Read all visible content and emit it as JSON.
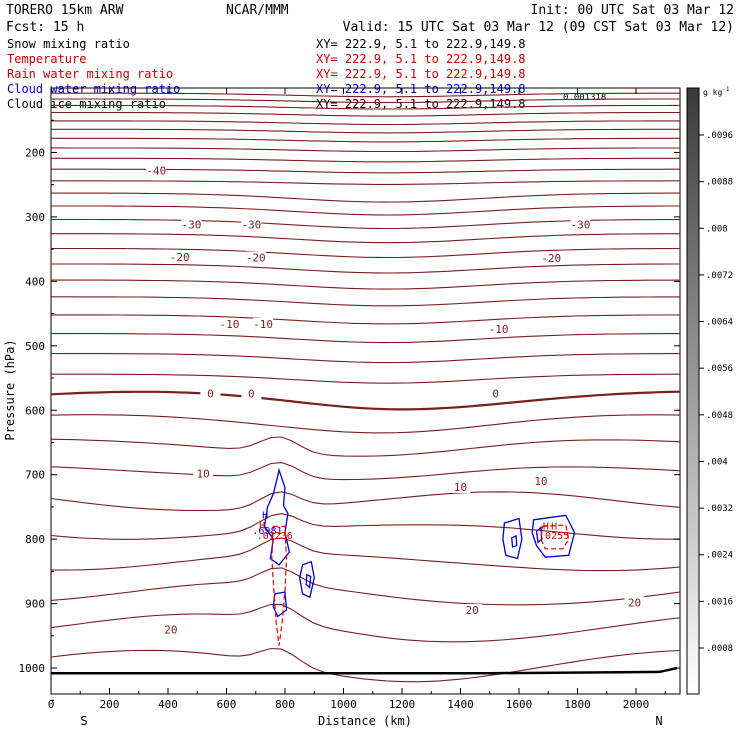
{
  "header": {
    "model": "TORERO   15km ARW",
    "center": "NCAR/MMM",
    "init": "Init: 00 UTC Sat 03 Mar 12",
    "fcst": "Fcst:    15 h",
    "valid": "Valid: 15 UTC Sat 03 Mar 12 (09 CST Sat 03 Mar 12)"
  },
  "fields": [
    {
      "name": "Snow mixing ratio",
      "xy": "XY= 222.9,  5.1 to 222.9,149.8",
      "color": "#000000"
    },
    {
      "name": "Temperature",
      "xy": "XY= 222.9,  5.1 to 222.9,149.8",
      "color": "#cc0000"
    },
    {
      "name": "Rain water mixing ratio",
      "xy": "XY= 222.9,  5.1 to 222.9,149.8",
      "color": "#cc0000"
    },
    {
      "name": "Cloud water mixing ratio",
      "xy": "XY= 222.9,  5.1 to 222.9,149.8",
      "color": "#0000cc"
    },
    {
      "name": "Cloud ice mixing ratio",
      "xy": "XY= 222.9,  5.1 to 222.9,149.8",
      "color": "#000000"
    }
  ],
  "corner_value": "0.001318",
  "colors": {
    "temperature_isotherm": "#7a1f1f",
    "rain_water": "#dd0000",
    "cloud_water": "#0000cc",
    "ground": "#000000"
  },
  "chart_data": {
    "type": "contour",
    "title": "",
    "xlabel": "Distance (km)",
    "ylabel": "Pressure (hPa)",
    "xlim": [
      0,
      2140
    ],
    "ylim": [
      1050,
      100
    ],
    "x_ticks": [
      0,
      200,
      400,
      600,
      800,
      1000,
      1200,
      1400,
      1600,
      1800,
      2000
    ],
    "y_ticks": [
      200,
      300,
      400,
      500,
      600,
      700,
      800,
      900,
      1000
    ],
    "x_end_labels": {
      "left": "S",
      "right": "N"
    },
    "colorbar": {
      "unit": "g kg",
      "unit_exponent": "-1",
      "ticks": [
        ".0096",
        ".0088",
        ".008",
        ".0072",
        ".0064",
        ".0056",
        ".0048",
        ".004",
        ".0032",
        ".0024",
        ".0016",
        ".0008"
      ]
    },
    "isotherm_labels": [
      {
        "value": "-40",
        "x": 360,
        "p": 228
      },
      {
        "value": "-30",
        "x": 480,
        "p": 312
      },
      {
        "value": "-30",
        "x": 685,
        "p": 312
      },
      {
        "value": "-30",
        "x": 1810,
        "p": 312
      },
      {
        "value": "-20",
        "x": 440,
        "p": 362
      },
      {
        "value": "-20",
        "x": 700,
        "p": 363
      },
      {
        "value": "-20",
        "x": 1710,
        "p": 364
      },
      {
        "value": "-10",
        "x": 610,
        "p": 466
      },
      {
        "value": "-10",
        "x": 725,
        "p": 466
      },
      {
        "value": "-10",
        "x": 1530,
        "p": 474
      },
      {
        "value": "0",
        "x": 545,
        "p": 574
      },
      {
        "value": "0",
        "x": 685,
        "p": 574
      },
      {
        "value": "0",
        "x": 1520,
        "p": 574
      },
      {
        "value": "10",
        "x": 520,
        "p": 698
      },
      {
        "value": "10",
        "x": 1400,
        "p": 719
      },
      {
        "value": "10",
        "x": 1675,
        "p": 710
      },
      {
        "value": "20",
        "x": 410,
        "p": 940
      },
      {
        "value": "20",
        "x": 1440,
        "p": 910
      },
      {
        "value": "20",
        "x": 1995,
        "p": 898
      }
    ],
    "extrema_labels": [
      {
        "text": "H",
        "x": 732,
        "p": 768,
        "color": "#0000cc"
      },
      {
        "text": ".6981",
        "x": 740,
        "p": 792,
        "color": "#0000cc"
      },
      {
        "text": "H",
        "x": 722,
        "p": 784,
        "color": "#dd0000"
      },
      {
        "text": ".01236",
        "x": 765,
        "p": 800,
        "color": "#dd0000"
      },
      {
        "text": "H",
        "x": 1692,
        "p": 785,
        "color": "#dd0000"
      },
      {
        "text": "H",
        "x": 1720,
        "p": 785,
        "color": "#dd0000"
      },
      {
        "text": ".0255",
        "x": 1720,
        "p": 800,
        "color": "#dd0000"
      }
    ]
  }
}
